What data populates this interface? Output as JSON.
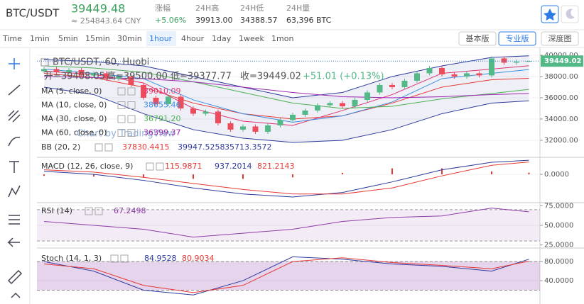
{
  "header": {
    "symbol": "BTC/USDT",
    "price": "39449.48",
    "cny": "≈ 254843.64 CNY",
    "change_label": "涨幅",
    "change": "+5.06%",
    "high_label": "24H高",
    "high": "39913.00",
    "low_label": "24H低",
    "low": "34388.57",
    "volume_label": "24H量",
    "volume": "63,396 BTC"
  },
  "toolbar": {
    "intervals": [
      "Time",
      "1min",
      "5min",
      "15min",
      "30min",
      "1hour",
      "4hour",
      "1day",
      "1week",
      "1mon"
    ],
    "active": "1hour",
    "views": [
      "基本版",
      "专业版",
      "深度图"
    ],
    "active_view": "专业版"
  },
  "chart_data": {
    "type": "candlestick",
    "series_title": "BTC/USDT, 60, Huobi",
    "ohlc_legend": [
      "开=39408.05",
      "高=39500.00",
      "低=39377.77",
      "收=39449.02",
      "+51.01 (+0.13%)"
    ],
    "open": [
      38500,
      38700,
      38400,
      38600,
      38100,
      38300,
      37800,
      38000,
      37200,
      36000,
      35400,
      36100,
      35000,
      34500,
      34700,
      33600,
      33000,
      33300,
      32800,
      33400,
      33900,
      34400,
      34800,
      35300,
      35500,
      35200,
      35800,
      36500,
      37200,
      37000,
      37600,
      38300,
      38800,
      38200,
      38000,
      38300,
      38100,
      39700,
      39300,
      39408.05
    ],
    "high": [
      38900,
      38900,
      38800,
      38800,
      38500,
      38500,
      38200,
      38200,
      37400,
      36200,
      36300,
      36300,
      35200,
      34900,
      34900,
      33800,
      33500,
      33500,
      33600,
      34100,
      34600,
      35000,
      35500,
      35700,
      35700,
      36000,
      36700,
      37400,
      37400,
      37800,
      38500,
      39000,
      39000,
      38400,
      38500,
      38500,
      39900,
      39900,
      39600,
      39500
    ],
    "low": [
      38300,
      38200,
      38200,
      37900,
      37900,
      37600,
      37600,
      37000,
      35800,
      35200,
      35200,
      34800,
      34300,
      34300,
      33400,
      32800,
      32800,
      32600,
      32600,
      33200,
      33700,
      34200,
      34600,
      35100,
      35000,
      35000,
      35600,
      36300,
      36800,
      36800,
      37400,
      38100,
      38000,
      37800,
      37800,
      37900,
      37900,
      39100,
      39100,
      39377.77
    ],
    "close": [
      38700,
      38400,
      38600,
      38100,
      38300,
      37800,
      38000,
      37200,
      36000,
      35400,
      36100,
      35000,
      34500,
      34700,
      33600,
      33000,
      33300,
      32800,
      33400,
      33900,
      34400,
      34800,
      35300,
      35500,
      35200,
      35800,
      36500,
      37200,
      37000,
      37600,
      38300,
      38800,
      38200,
      38000,
      38300,
      38100,
      39700,
      39300,
      39400,
      39449.02
    ],
    "up_color": "#53b987",
    "down_color": "#eb4d5c",
    "ylim": [
      30530,
      40530
    ],
    "yticks": [
      {
        "value": 40000,
        "label": "40000.00"
      },
      {
        "value": 38000,
        "label": "38000.00"
      },
      {
        "value": 36000,
        "label": "36000.00"
      },
      {
        "value": 34000,
        "label": "34000.00"
      },
      {
        "value": 32000,
        "label": "32000.00"
      }
    ],
    "last_price": {
      "value": 39449.02,
      "label": "39449.02"
    },
    "watermark": "Chart by TradingView",
    "indicator_x": [
      0,
      4,
      8,
      12,
      16,
      20,
      24,
      28,
      32,
      36,
      39
    ],
    "overlays": [
      {
        "name": "MA (5, close, 0)",
        "legend": "39010.09",
        "color": "#e0316f",
        "values": [
          38500,
          38200,
          37400,
          35000,
          33800,
          33400,
          34800,
          36300,
          38300,
          38700,
          39010
        ]
      },
      {
        "name": "MA (10, close, 0)",
        "legend": "38655.46",
        "color": "#3d8fe0",
        "values": [
          38700,
          38300,
          37800,
          35800,
          34500,
          33700,
          34300,
          35600,
          37800,
          38300,
          38655
        ]
      },
      {
        "name": "MA (30, close, 0)",
        "legend": "36791.20",
        "color": "#4caf50",
        "values": [
          39000,
          38800,
          38400,
          37500,
          36500,
          35500,
          35000,
          35200,
          35900,
          36400,
          36791
        ]
      },
      {
        "name": "MA (60, close, 0)",
        "legend": "36399.37",
        "color": "#9c27b0",
        "values": [
          38000,
          37900,
          37800,
          37500,
          37000,
          36500,
          36100,
          36000,
          36100,
          36300,
          36399
        ]
      }
    ],
    "bb": {
      "name": "BB (20, 2)",
      "legend": [
        "37830.4415",
        "39947.5258",
        "35713.3572"
      ],
      "legend_colors": [
        "#e53935",
        "#2e3a9c",
        "#2e3a9c"
      ],
      "middle_color": "#e53935",
      "band_color": "#2e3a9c",
      "upper": [
        39600,
        39400,
        39000,
        38000,
        37000,
        36000,
        36500,
        38000,
        39000,
        39800,
        39947
      ],
      "middle": [
        38300,
        37900,
        37000,
        35500,
        34500,
        34000,
        34300,
        35500,
        37000,
        37700,
        37830
      ],
      "lower": [
        37000,
        36300,
        34500,
        33000,
        32200,
        31800,
        32000,
        33000,
        34500,
        35500,
        35713
      ]
    },
    "macd": {
      "name": "MACD (12, 26, close, 9)",
      "legend": [
        "115.9871",
        "937.2014",
        "821.2143"
      ],
      "legend_colors": [
        "#e53935",
        "#2e3a9c",
        "#e53935"
      ],
      "ylim": [
        -1830,
        1130
      ],
      "yticks": [
        {
          "value": 0,
          "label": "0.0000"
        }
      ],
      "macd": [
        200,
        0,
        -400,
        -900,
        -1300,
        -1500,
        -1200,
        -500,
        300,
        800,
        937
      ],
      "macd_color": "#2e3a9c",
      "signal": [
        300,
        150,
        -200,
        -600,
        -1000,
        -1300,
        -1300,
        -900,
        -100,
        600,
        821
      ],
      "signal_color": "#e53935",
      "histogram": [
        -100,
        -150,
        -200,
        -300,
        -300,
        -200,
        100,
        400,
        400,
        200,
        116
      ],
      "histogram_color": "#e53935"
    },
    "rsi": {
      "name": "RSI (14)",
      "legend": "67.2498",
      "color": "#8e3ca8",
      "ylim": [
        22,
        78
      ],
      "yticks": [
        {
          "value": 75,
          "label": "75.0000"
        },
        {
          "value": 50,
          "label": "50.0000"
        },
        {
          "value": 25,
          "label": "25.0000"
        }
      ],
      "bands": [
        30,
        70
      ],
      "values": [
        55,
        50,
        45,
        35,
        40,
        45,
        55,
        60,
        62,
        72,
        67.25
      ]
    },
    "stoch": {
      "name": "Stoch (14, 1, 3)",
      "legend": [
        "84.9528",
        "80.9034"
      ],
      "k_color": "#2e3a9c",
      "d_color": "#e53935",
      "ylim": [
        -9,
        107
      ],
      "yticks": [
        {
          "value": 80,
          "label": "80.0000"
        },
        {
          "value": 40,
          "label": "40.0000"
        }
      ],
      "bands": [
        20,
        80
      ],
      "k": [
        80,
        60,
        20,
        10,
        40,
        90,
        85,
        75,
        70,
        60,
        84.95
      ],
      "d": [
        75,
        65,
        30,
        15,
        30,
        80,
        88,
        78,
        72,
        65,
        80.9
      ]
    }
  }
}
